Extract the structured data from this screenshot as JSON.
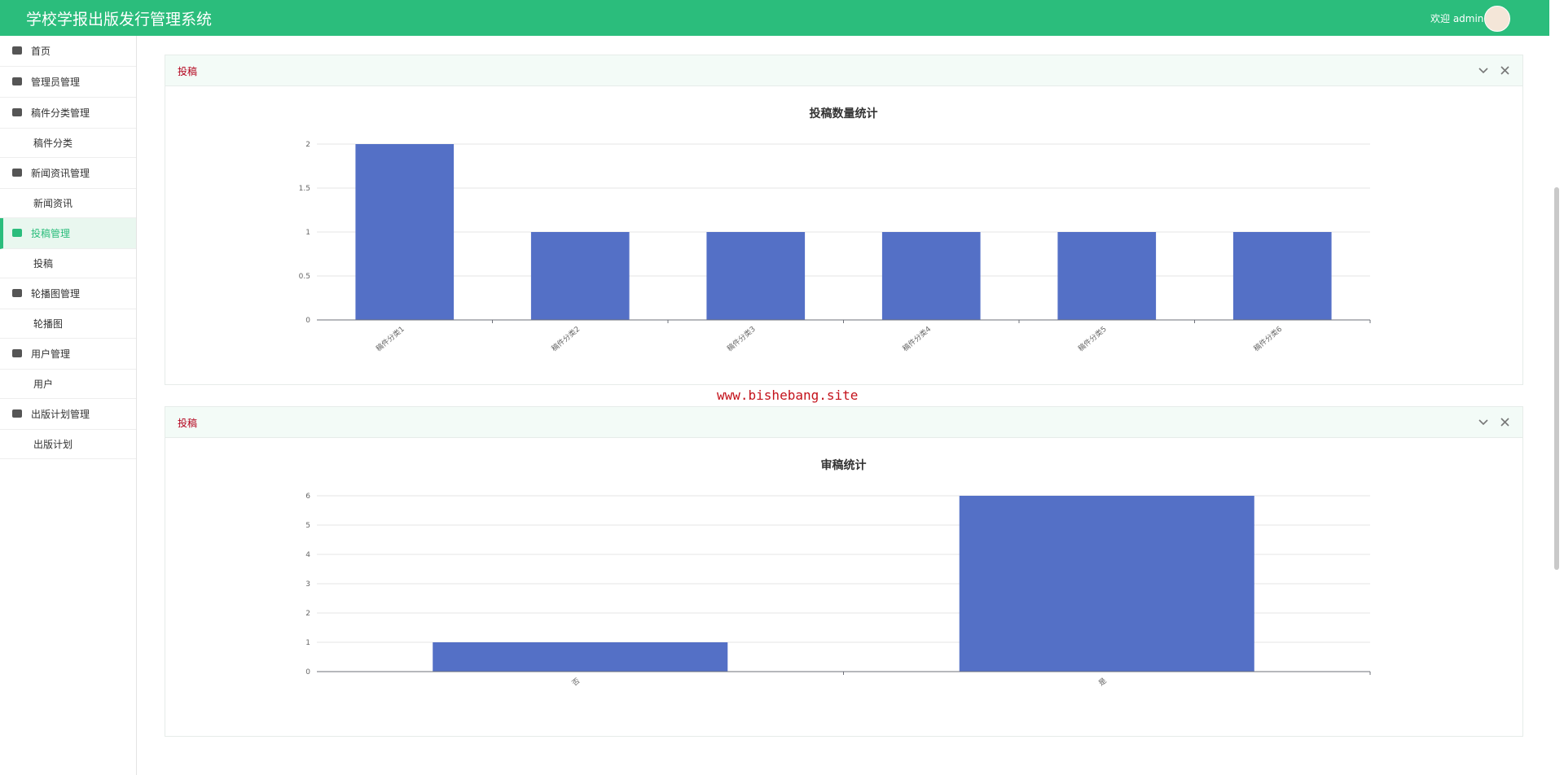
{
  "header": {
    "title": "学校学报出版发行管理系统",
    "welcome": "欢迎 admin"
  },
  "menu": [
    {
      "label": "首页",
      "level": 1
    },
    {
      "label": "管理员管理",
      "level": 1
    },
    {
      "label": "稿件分类管理",
      "level": 1
    },
    {
      "label": "稿件分类",
      "level": 2
    },
    {
      "label": "新闻资讯管理",
      "level": 1
    },
    {
      "label": "新闻资讯",
      "level": 2
    },
    {
      "label": "投稿管理",
      "level": 1,
      "active": true
    },
    {
      "label": "投稿",
      "level": 2
    },
    {
      "label": "轮播图管理",
      "level": 1
    },
    {
      "label": "轮播图",
      "level": 2
    },
    {
      "label": "用户管理",
      "level": 1
    },
    {
      "label": "用户",
      "level": 2
    },
    {
      "label": "出版计划管理",
      "level": 1
    },
    {
      "label": "出版计划",
      "level": 2
    }
  ],
  "panels": [
    {
      "title": "投稿",
      "chart": {
        "type": "bar",
        "title": "投稿数量统计",
        "categories": [
          "稿件分类1",
          "稿件分类2",
          "稿件分类3",
          "稿件分类4",
          "稿件分类5",
          "稿件分类6"
        ],
        "values": [
          2,
          1,
          1,
          1,
          1,
          1
        ],
        "color": "#5470c6",
        "ylim": [
          0,
          2
        ],
        "yticks": [
          0,
          0.5,
          1,
          1.5,
          2
        ],
        "grid": true
      }
    },
    {
      "title": "投稿",
      "chart": {
        "type": "bar",
        "title": "审稿统计",
        "categories": [
          "否",
          "是"
        ],
        "values": [
          1,
          6
        ],
        "color": "#5470c6",
        "ylim": [
          0,
          6
        ],
        "yticks": [
          0,
          1,
          2,
          3,
          4,
          5,
          6
        ],
        "grid": true
      }
    }
  ],
  "watermark": "www.bishebang.site"
}
